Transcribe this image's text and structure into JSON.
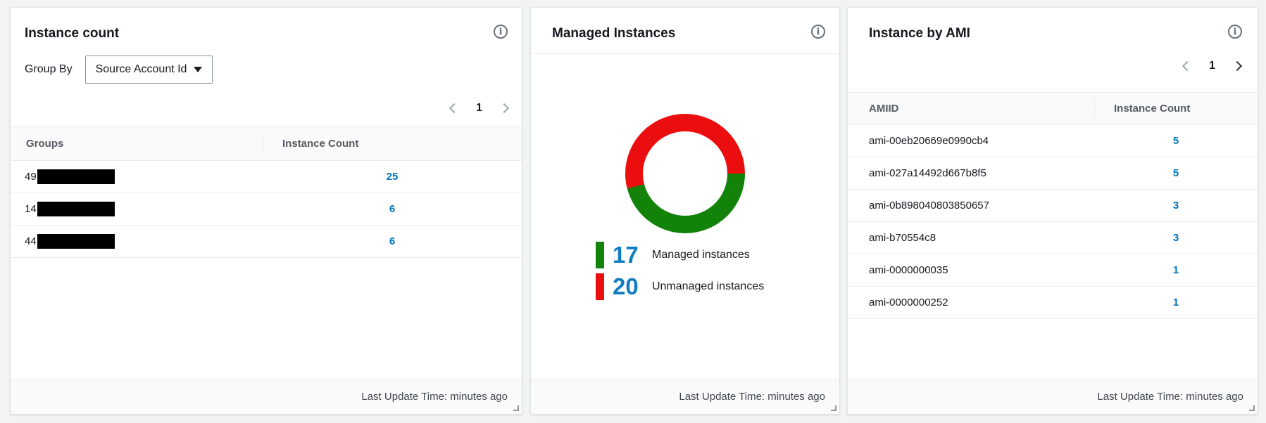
{
  "colors": {
    "page_bg": "#f2f3f3",
    "card_bg": "#ffffff",
    "link_blue": "#0073bb",
    "legend_number_blue": "#0f7dc2",
    "managed_green": "#128208",
    "unmanaged_red": "#eb0e0e",
    "chevron_enabled": "#2a3540",
    "chevron_disabled": "#9aa5a6",
    "redaction_black": "#000000"
  },
  "cards": [
    {
      "title": "Instance count",
      "info_icon": "info-circle-icon",
      "group_by": {
        "label": "Group By",
        "value": "Source Account Id"
      },
      "pagination": {
        "page": "1",
        "prev_enabled": false,
        "next_enabled": false
      },
      "table": {
        "columns": [
          "Groups",
          "Instance Count"
        ],
        "rows": [
          {
            "prefix": "49",
            "redacted": true,
            "count": "25"
          },
          {
            "prefix": "14",
            "redacted": true,
            "count": "6"
          },
          {
            "prefix": "44",
            "redacted": true,
            "count": "6"
          }
        ]
      },
      "last_update": "Last Update Time: minutes ago"
    },
    {
      "title": "Managed Instances",
      "info_icon": "info-circle-icon",
      "last_update": "Last Update Time: minutes ago"
    },
    {
      "title": "Instance by AMI",
      "info_icon": "info-circle-icon",
      "pagination": {
        "page": "1",
        "prev_enabled": false,
        "next_enabled": true
      },
      "table": {
        "columns": [
          "AMIID",
          "Instance Count"
        ],
        "rows": [
          {
            "ami": "ami-00eb20669e0990cb4",
            "count": "5"
          },
          {
            "ami": "ami-027a14492d667b8f5",
            "count": "5"
          },
          {
            "ami": "ami-0b898040803850657",
            "count": "3"
          },
          {
            "ami": "ami-b70554c8",
            "count": "3"
          },
          {
            "ami": "ami-0000000035",
            "count": "1"
          },
          {
            "ami": "ami-0000000252",
            "count": "1"
          }
        ]
      },
      "last_update": "Last Update Time: minutes ago"
    }
  ],
  "chart_data": {
    "type": "pie",
    "title": "Managed Instances",
    "donut": true,
    "start": "3-oclock, clockwise, managed first",
    "series": [
      {
        "name": "Managed instances",
        "value": 17,
        "color": "#128208"
      },
      {
        "name": "Unmanaged instances",
        "value": 20,
        "color": "#eb0e0e"
      }
    ],
    "total": 37,
    "legend_position": "bottom"
  }
}
